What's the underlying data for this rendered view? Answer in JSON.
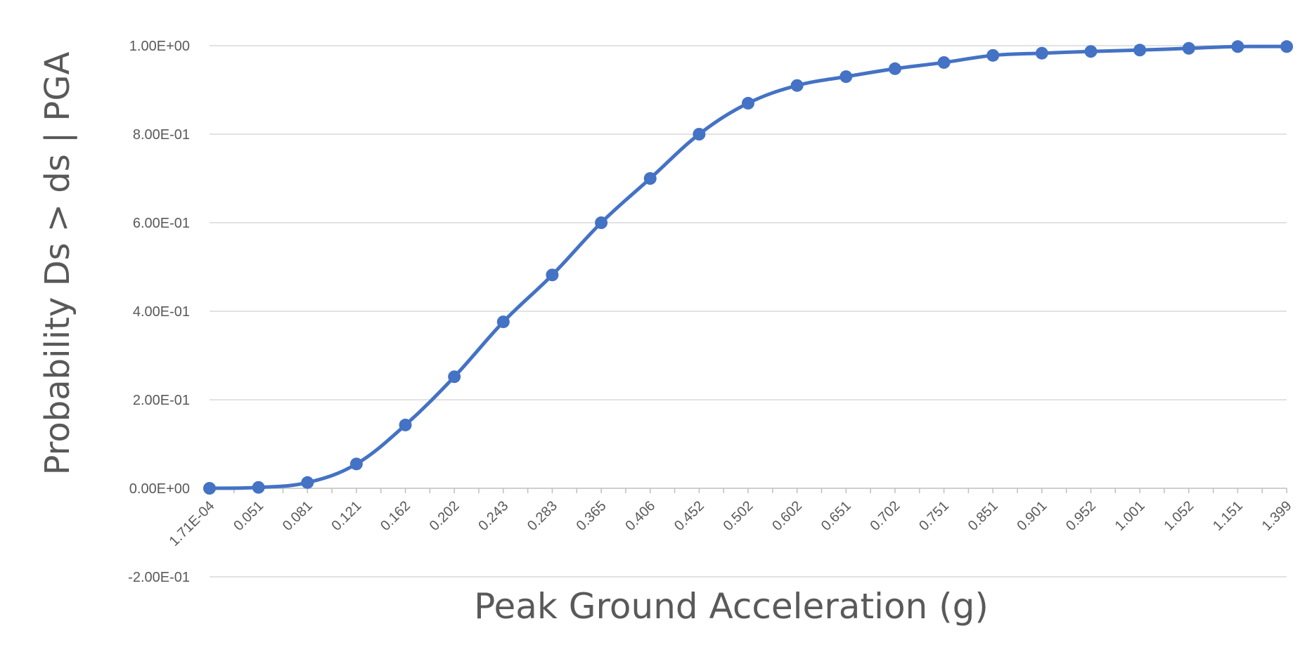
{
  "chart_data": {
    "type": "line",
    "title": "",
    "xlabel": "Peak Ground Acceleration (g)",
    "ylabel": "Probability Ds > ds | PGA",
    "ylim": [
      -0.2,
      1.0
    ],
    "yticks": [
      -0.2,
      0.0,
      0.2,
      0.4,
      0.6,
      0.8,
      1.0
    ],
    "ytick_labels": [
      "-2.00E-01",
      "0.00E+00",
      "2.00E-01",
      "4.00E-01",
      "6.00E-01",
      "8.00E-01",
      "1.00E+00"
    ],
    "categories": [
      "1.71E-04",
      "0.051",
      "0.081",
      "0.121",
      "0.162",
      "0.202",
      "0.243",
      "0.283",
      "0.365",
      "0.406",
      "0.452",
      "0.502",
      "0.602",
      "0.651",
      "0.702",
      "0.751",
      "0.851",
      "0.901",
      "0.952",
      "1.001",
      "1.052",
      "1.151",
      "1.399"
    ],
    "series": [
      {
        "values": [
          0.0,
          0.002,
          0.013,
          0.055,
          0.143,
          0.252,
          0.376,
          0.482,
          0.6,
          0.7,
          0.8,
          0.87,
          0.91,
          0.93,
          0.948,
          0.962,
          0.978,
          0.983,
          0.987,
          0.99,
          0.994,
          0.998,
          0.998
        ],
        "color": "#4472c4"
      }
    ],
    "grid": true,
    "legend": "none"
  }
}
